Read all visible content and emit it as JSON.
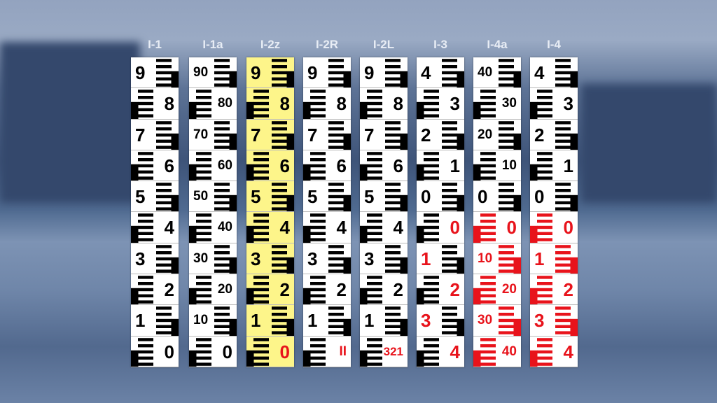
{
  "colors": {
    "black": "#000000",
    "red": "#e8131b",
    "white": "#ffffff",
    "yellow": "#fdf58a"
  },
  "columns": [
    {
      "label": "I-1",
      "bg": "#ffffff",
      "cells": [
        {
          "t": "9",
          "tc": "#000",
          "mc": "#000"
        },
        {
          "t": "8",
          "tc": "#000",
          "mc": "#000"
        },
        {
          "t": "7",
          "tc": "#000",
          "mc": "#000"
        },
        {
          "t": "6",
          "tc": "#000",
          "mc": "#000"
        },
        {
          "t": "5",
          "tc": "#000",
          "mc": "#000"
        },
        {
          "t": "4",
          "tc": "#000",
          "mc": "#000"
        },
        {
          "t": "3",
          "tc": "#000",
          "mc": "#000"
        },
        {
          "t": "2",
          "tc": "#000",
          "mc": "#000"
        },
        {
          "t": "1",
          "tc": "#000",
          "mc": "#000"
        },
        {
          "t": "0",
          "tc": "#000",
          "mc": "#000"
        }
      ]
    },
    {
      "label": "I-1a",
      "bg": "#ffffff",
      "cells": [
        {
          "t": "90",
          "tc": "#000",
          "mc": "#000"
        },
        {
          "t": "80",
          "tc": "#000",
          "mc": "#000"
        },
        {
          "t": "70",
          "tc": "#000",
          "mc": "#000"
        },
        {
          "t": "60",
          "tc": "#000",
          "mc": "#000"
        },
        {
          "t": "50",
          "tc": "#000",
          "mc": "#000"
        },
        {
          "t": "40",
          "tc": "#000",
          "mc": "#000"
        },
        {
          "t": "30",
          "tc": "#000",
          "mc": "#000"
        },
        {
          "t": "20",
          "tc": "#000",
          "mc": "#000"
        },
        {
          "t": "10",
          "tc": "#000",
          "mc": "#000"
        },
        {
          "t": "0",
          "tc": "#000",
          "mc": "#000"
        }
      ]
    },
    {
      "label": "I-2z",
      "bg": "#fdf58a",
      "cells": [
        {
          "t": "9",
          "tc": "#000",
          "mc": "#000"
        },
        {
          "t": "8",
          "tc": "#000",
          "mc": "#000"
        },
        {
          "t": "7",
          "tc": "#000",
          "mc": "#000"
        },
        {
          "t": "6",
          "tc": "#000",
          "mc": "#000"
        },
        {
          "t": "5",
          "tc": "#000",
          "mc": "#000"
        },
        {
          "t": "4",
          "tc": "#000",
          "mc": "#000"
        },
        {
          "t": "3",
          "tc": "#000",
          "mc": "#000"
        },
        {
          "t": "2",
          "tc": "#000",
          "mc": "#000"
        },
        {
          "t": "1",
          "tc": "#000",
          "mc": "#000"
        },
        {
          "t": "0",
          "tc": "#e8131b",
          "mc": "#000"
        }
      ]
    },
    {
      "label": "I-2R",
      "bg": "#ffffff",
      "cells": [
        {
          "t": "9",
          "tc": "#000",
          "mc": "#000"
        },
        {
          "t": "8",
          "tc": "#000",
          "mc": "#000"
        },
        {
          "t": "7",
          "tc": "#000",
          "mc": "#000"
        },
        {
          "t": "6",
          "tc": "#000",
          "mc": "#000"
        },
        {
          "t": "5",
          "tc": "#000",
          "mc": "#000"
        },
        {
          "t": "4",
          "tc": "#000",
          "mc": "#000"
        },
        {
          "t": "3",
          "tc": "#000",
          "mc": "#000"
        },
        {
          "t": "2",
          "tc": "#000",
          "mc": "#000"
        },
        {
          "t": "1",
          "tc": "#000",
          "mc": "#000"
        },
        {
          "t": "II",
          "tc": "#e8131b",
          "mc": "#000"
        }
      ]
    },
    {
      "label": "I-2L",
      "bg": "#ffffff",
      "cells": [
        {
          "t": "9",
          "tc": "#000",
          "mc": "#000"
        },
        {
          "t": "8",
          "tc": "#000",
          "mc": "#000"
        },
        {
          "t": "7",
          "tc": "#000",
          "mc": "#000"
        },
        {
          "t": "6",
          "tc": "#000",
          "mc": "#000"
        },
        {
          "t": "5",
          "tc": "#000",
          "mc": "#000"
        },
        {
          "t": "4",
          "tc": "#000",
          "mc": "#000"
        },
        {
          "t": "3",
          "tc": "#000",
          "mc": "#000"
        },
        {
          "t": "2",
          "tc": "#000",
          "mc": "#000"
        },
        {
          "t": "1",
          "tc": "#000",
          "mc": "#000"
        },
        {
          "t": "321",
          "tc": "#e8131b",
          "mc": "#000"
        }
      ]
    },
    {
      "label": "I-3",
      "bg": "#ffffff",
      "cells": [
        {
          "t": "4",
          "tc": "#000",
          "mc": "#000"
        },
        {
          "t": "3",
          "tc": "#000",
          "mc": "#000"
        },
        {
          "t": "2",
          "tc": "#000",
          "mc": "#000"
        },
        {
          "t": "1",
          "tc": "#000",
          "mc": "#000"
        },
        {
          "t": "0",
          "tc": "#000",
          "mc": "#000"
        },
        {
          "t": "0",
          "tc": "#e8131b",
          "mc": "#000"
        },
        {
          "t": "1",
          "tc": "#e8131b",
          "mc": "#000"
        },
        {
          "t": "2",
          "tc": "#e8131b",
          "mc": "#000"
        },
        {
          "t": "3",
          "tc": "#e8131b",
          "mc": "#000"
        },
        {
          "t": "4",
          "tc": "#e8131b",
          "mc": "#000"
        }
      ]
    },
    {
      "label": "I-4a",
      "bg": "#ffffff",
      "cells": [
        {
          "t": "40",
          "tc": "#000",
          "mc": "#000"
        },
        {
          "t": "30",
          "tc": "#000",
          "mc": "#000"
        },
        {
          "t": "20",
          "tc": "#000",
          "mc": "#000"
        },
        {
          "t": "10",
          "tc": "#000",
          "mc": "#000"
        },
        {
          "t": "0",
          "tc": "#000",
          "mc": "#000"
        },
        {
          "t": "0",
          "tc": "#e8131b",
          "mc": "#e8131b"
        },
        {
          "t": "10",
          "tc": "#e8131b",
          "mc": "#e8131b"
        },
        {
          "t": "20",
          "tc": "#e8131b",
          "mc": "#e8131b"
        },
        {
          "t": "30",
          "tc": "#e8131b",
          "mc": "#e8131b"
        },
        {
          "t": "40",
          "tc": "#e8131b",
          "mc": "#e8131b"
        }
      ]
    },
    {
      "label": "I-4",
      "bg": "#ffffff",
      "cells": [
        {
          "t": "4",
          "tc": "#000",
          "mc": "#000"
        },
        {
          "t": "3",
          "tc": "#000",
          "mc": "#000"
        },
        {
          "t": "2",
          "tc": "#000",
          "mc": "#000"
        },
        {
          "t": "1",
          "tc": "#000",
          "mc": "#000"
        },
        {
          "t": "0",
          "tc": "#000",
          "mc": "#000"
        },
        {
          "t": "0",
          "tc": "#e8131b",
          "mc": "#e8131b"
        },
        {
          "t": "1",
          "tc": "#e8131b",
          "mc": "#e8131b"
        },
        {
          "t": "2",
          "tc": "#e8131b",
          "mc": "#e8131b"
        },
        {
          "t": "3",
          "tc": "#e8131b",
          "mc": "#e8131b"
        },
        {
          "t": "4",
          "tc": "#e8131b",
          "mc": "#e8131b"
        }
      ]
    }
  ]
}
